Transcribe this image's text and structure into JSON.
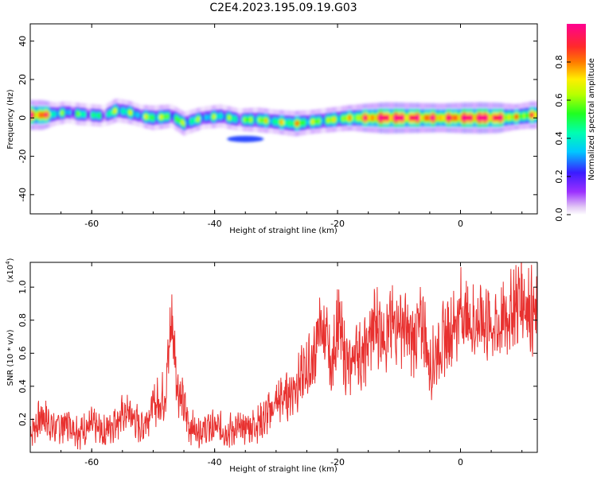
{
  "figure": {
    "title": "C2E4.2023.195.09.19.G03"
  },
  "chart_data": [
    {
      "type": "heatmap",
      "xlabel": "Height of straight line (km)",
      "ylabel": "Frequency (Hz)",
      "xlim": [
        -70,
        12.5
      ],
      "ylim": [
        -50,
        49
      ],
      "xticks": [
        -60,
        -40,
        -20,
        0
      ],
      "xtick_labels": [
        "-60",
        "-40",
        "-20",
        "0"
      ],
      "yticks": [
        -40,
        -20,
        0,
        20,
        40
      ],
      "ytick_labels": [
        "-40",
        "-20",
        "0",
        "20",
        "40"
      ],
      "colorbar": {
        "label": "Normalized spectral amplitude",
        "range": [
          0,
          1
        ],
        "ticks": [
          0,
          0.2,
          0.4,
          0.6,
          0.8
        ],
        "tick_labels": [
          "0.0",
          "0.2",
          "0.4",
          "0.6",
          "0.8"
        ],
        "colormap": "rainbow (purple-blue-cyan-green-yellow-red-magenta)"
      },
      "band": {
        "description_points": [
          {
            "x": -68,
            "freq": 1.5,
            "amp": 0.85
          },
          {
            "x": -66,
            "freq": 2,
            "amp": 0.45
          },
          {
            "x": -64,
            "freq": 3,
            "amp": 0.35
          },
          {
            "x": -62,
            "freq": 2,
            "amp": 0.4
          },
          {
            "x": -58,
            "freq": 1,
            "amp": 0.35
          },
          {
            "x": -56,
            "freq": 4,
            "amp": 0.5
          },
          {
            "x": -54,
            "freq": 3,
            "amp": 0.45
          },
          {
            "x": -52,
            "freq": 1,
            "amp": 0.4
          },
          {
            "x": -50,
            "freq": 0,
            "amp": 0.55
          },
          {
            "x": -47,
            "freq": 1,
            "amp": 0.45
          },
          {
            "x": -45,
            "freq": -3,
            "amp": 0.5
          },
          {
            "x": -42,
            "freq": 0,
            "amp": 0.4
          },
          {
            "x": -39,
            "freq": 1,
            "amp": 0.45
          },
          {
            "x": -36,
            "freq": -1,
            "amp": 0.4
          },
          {
            "x": -33,
            "freq": -1,
            "amp": 0.55
          },
          {
            "x": -30,
            "freq": -2,
            "amp": 0.5
          },
          {
            "x": -27,
            "freq": -3,
            "amp": 0.6
          },
          {
            "x": -24,
            "freq": -2,
            "amp": 0.5
          },
          {
            "x": -21,
            "freq": -1,
            "amp": 0.55
          },
          {
            "x": -18,
            "freq": 0,
            "amp": 0.6
          },
          {
            "x": -15,
            "freq": 0,
            "amp": 0.8
          },
          {
            "x": -12,
            "freq": 0,
            "amp": 0.95
          },
          {
            "x": -9,
            "freq": 0,
            "amp": 0.9
          },
          {
            "x": -6,
            "freq": 0,
            "amp": 0.85
          },
          {
            "x": -3,
            "freq": 0,
            "amp": 0.8
          },
          {
            "x": 0,
            "freq": 0,
            "amp": 0.9
          },
          {
            "x": 3,
            "freq": 0,
            "amp": 0.95
          },
          {
            "x": 6,
            "freq": 0,
            "amp": 0.9
          },
          {
            "x": 9,
            "freq": 0.5,
            "amp": 0.6
          },
          {
            "x": 11.5,
            "freq": 1.5,
            "amp": 0.7
          }
        ],
        "side_lobe": {
          "x_start": -38,
          "x_end": -32,
          "freq": -11,
          "amp": 0.25
        }
      }
    },
    {
      "type": "line",
      "xlabel": "Height of straight line (km)",
      "ylabel": "SNR (10 * v/v)",
      "y_multiplier_label": "(x10",
      "y_multiplier_exp": "4",
      "y_multiplier_close": ")",
      "xlim": [
        -70,
        12.5
      ],
      "ylim": [
        0,
        1.15
      ],
      "xticks": [
        -60,
        -40,
        -20,
        0
      ],
      "xtick_labels": [
        "-60",
        "-40",
        "-20",
        "0"
      ],
      "yticks": [
        0.2,
        0.4,
        0.6,
        0.8,
        1.0
      ],
      "ytick_labels": [
        "0.2",
        "0.4",
        "0.6",
        "0.8",
        "1.0"
      ],
      "series": [
        {
          "color": "#e8312f",
          "x": [
            -70,
            -68,
            -66,
            -64,
            -62,
            -60,
            -58,
            -56,
            -54,
            -52,
            -50,
            -48,
            -47,
            -46,
            -44,
            -42,
            -40,
            -38,
            -36,
            -34,
            -32,
            -30,
            -28,
            -26,
            -24,
            -23,
            -22,
            -21,
            -20,
            -19,
            -18,
            -17,
            -16,
            -14,
            -12,
            -10,
            -8,
            -6,
            -5,
            -4,
            -2,
            0,
            2,
            4,
            6,
            8,
            10,
            12,
            12.5
          ],
          "y": [
            0.12,
            0.22,
            0.14,
            0.18,
            0.13,
            0.16,
            0.12,
            0.2,
            0.24,
            0.15,
            0.28,
            0.35,
            0.82,
            0.4,
            0.15,
            0.14,
            0.15,
            0.13,
            0.14,
            0.16,
            0.2,
            0.3,
            0.35,
            0.45,
            0.55,
            0.75,
            0.72,
            0.48,
            0.82,
            0.6,
            0.5,
            0.65,
            0.55,
            0.78,
            0.72,
            0.8,
            0.68,
            0.78,
            0.5,
            0.6,
            0.72,
            0.85,
            0.78,
            0.8,
            0.75,
            0.85,
            0.95,
            0.82,
            0.8
          ]
        }
      ]
    }
  ]
}
